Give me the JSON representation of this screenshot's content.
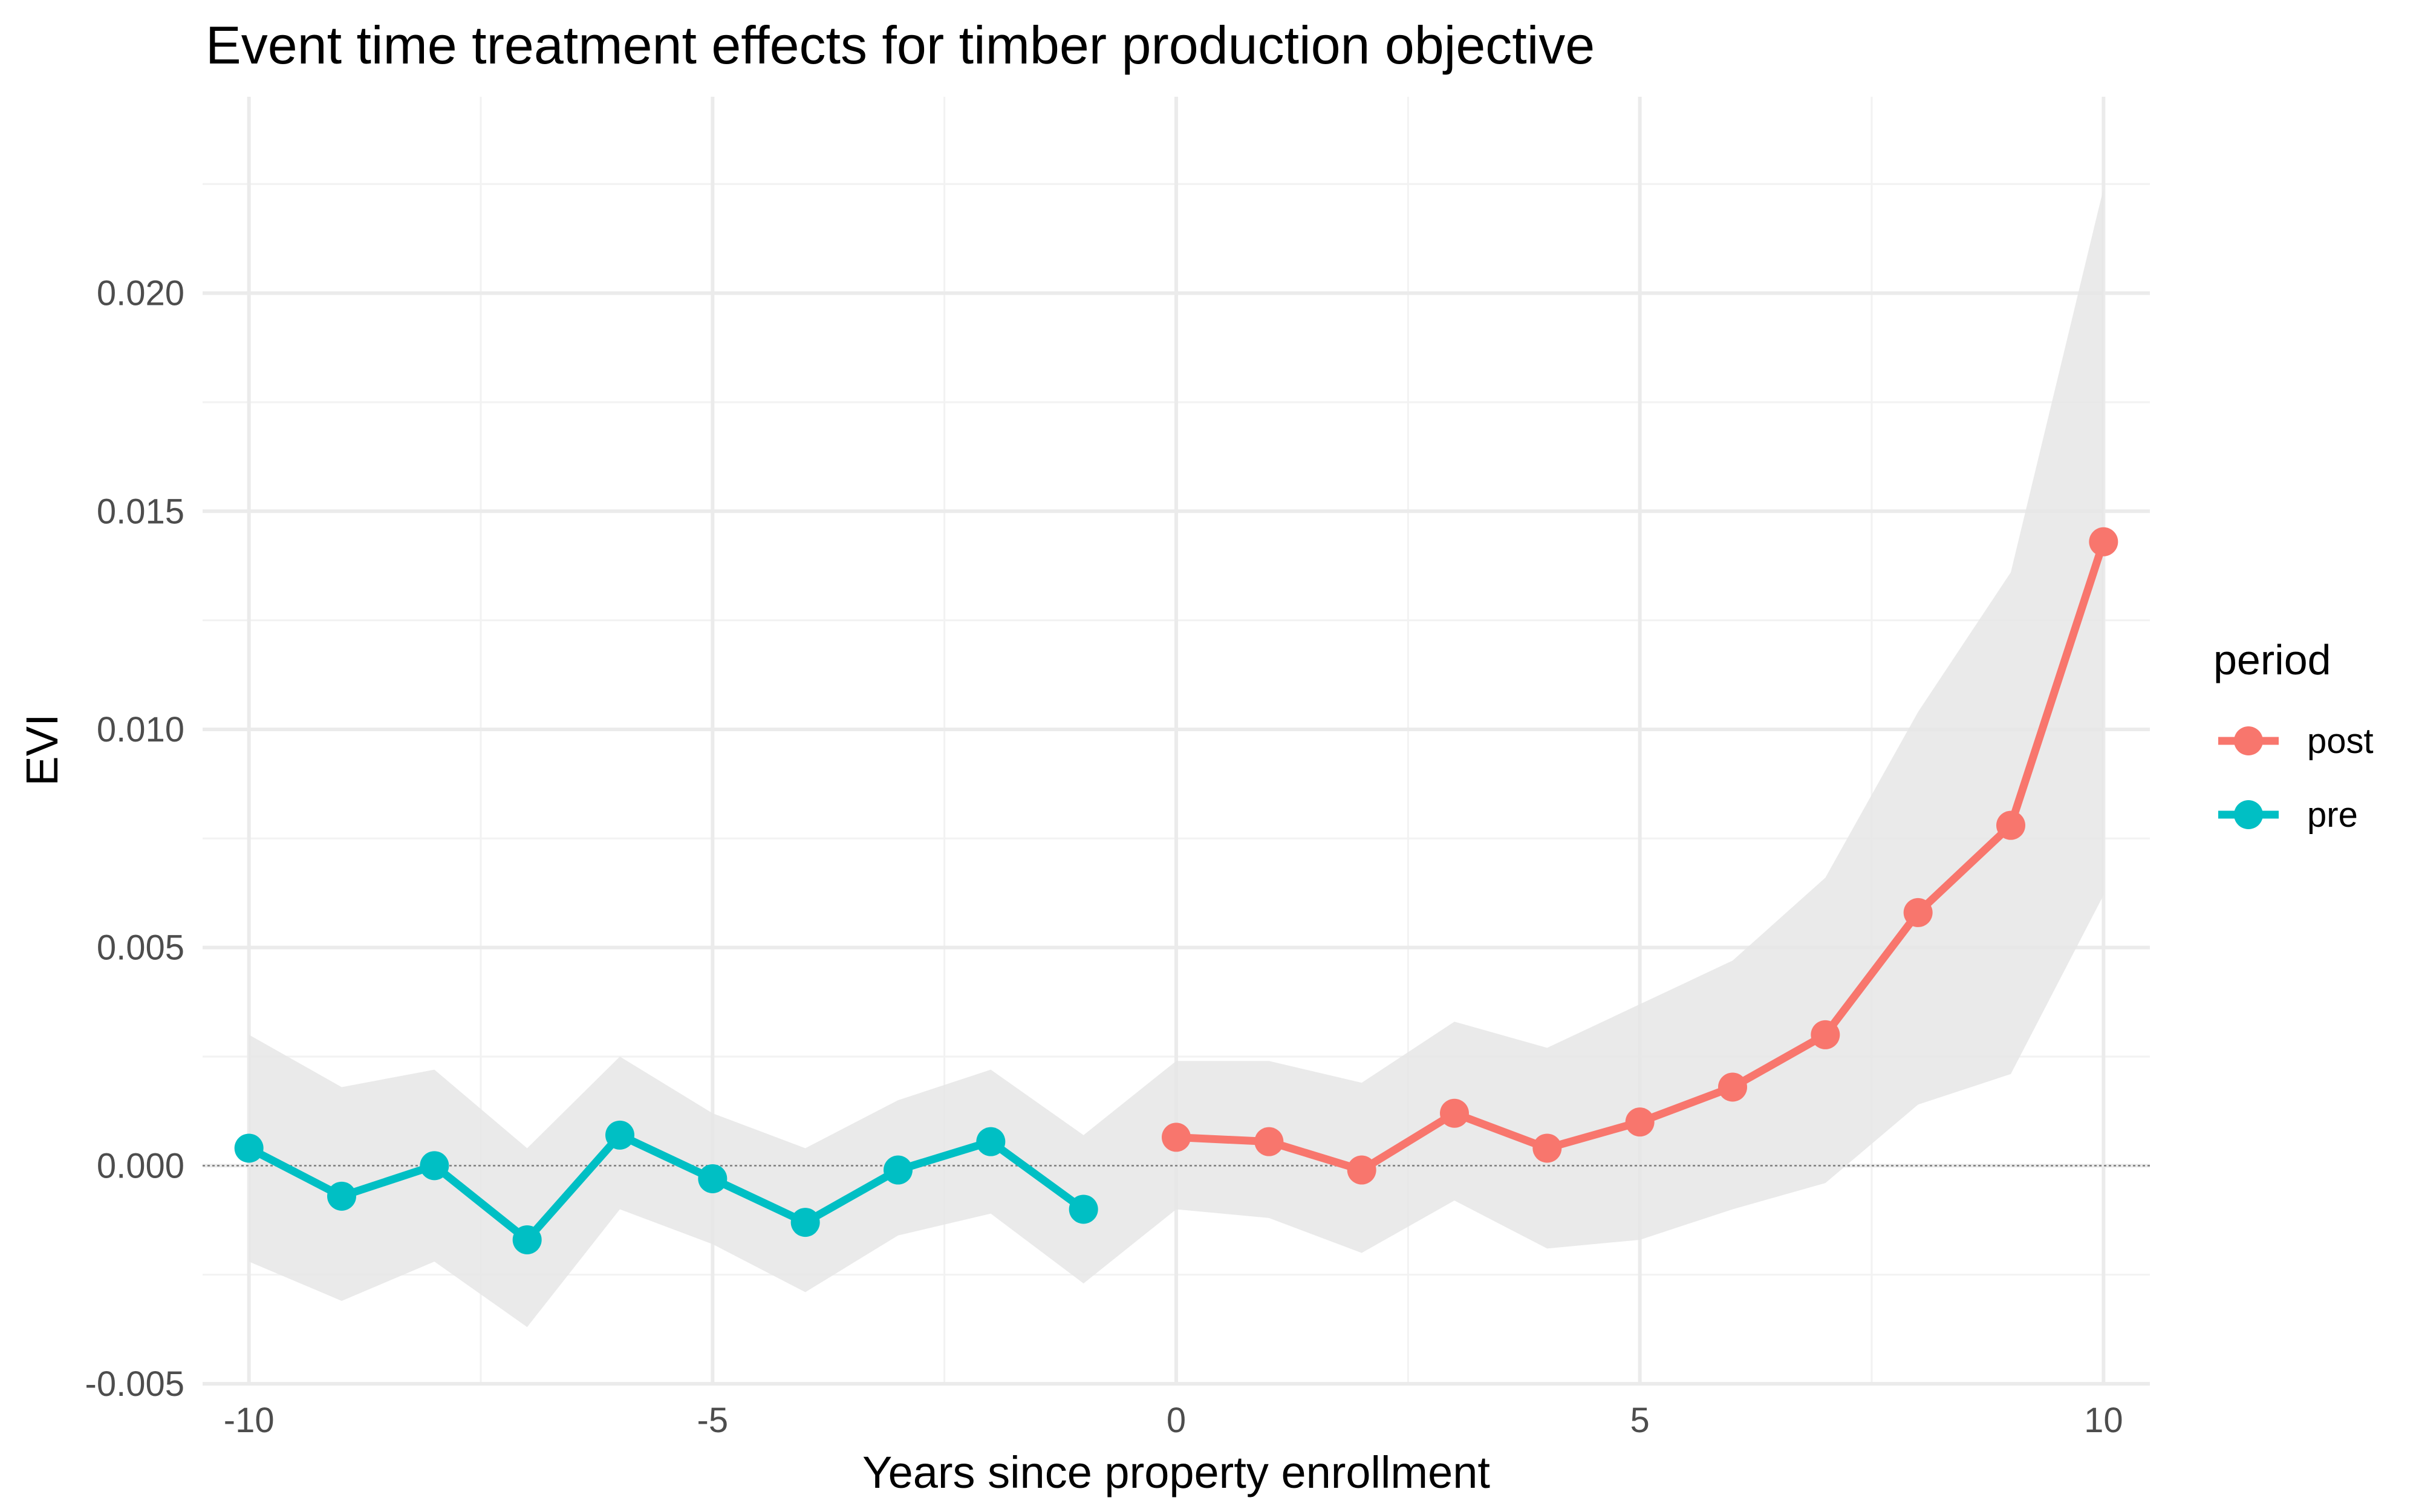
{
  "chart_data": {
    "type": "line",
    "title": "Event time treatment effects for timber production objective",
    "xlabel": "Years since property enrollment",
    "ylabel": "EVI",
    "xlim": [
      -10.5,
      10.5
    ],
    "ylim": [
      -0.005,
      0.0245
    ],
    "x_ticks": [
      -10,
      -5,
      0,
      5,
      10
    ],
    "x_tick_labels": [
      "-10",
      "-5",
      "0",
      "5",
      "10"
    ],
    "y_ticks": [
      -0.005,
      0.0,
      0.005,
      0.01,
      0.015,
      0.02
    ],
    "y_tick_labels": [
      "-0.005",
      "0.000",
      "0.005",
      "0.010",
      "0.015",
      "0.020"
    ],
    "grid": true,
    "reference_line": 0,
    "legend": {
      "title": "period",
      "position": "right"
    },
    "series": [
      {
        "name": "post",
        "color": "#F8766D",
        "x": [
          0,
          1,
          2,
          3,
          4,
          5,
          6,
          7,
          8,
          9,
          10
        ],
        "y": [
          0.00065,
          0.00055,
          -0.0001,
          0.0012,
          0.0004,
          0.001,
          0.0018,
          0.003,
          0.0058,
          0.0078,
          0.0143
        ]
      },
      {
        "name": "pre",
        "color": "#00BFC4",
        "x": [
          -10,
          -9,
          -8,
          -7,
          -6,
          -5,
          -4,
          -3,
          -2,
          -1
        ],
        "y": [
          0.0004,
          -0.0007,
          0.0,
          -0.0017,
          0.0007,
          -0.0003,
          -0.0013,
          -0.0001,
          0.00055,
          -0.001
        ]
      }
    ],
    "confidence_band": {
      "color": "#e6e6e6",
      "x": [
        -10,
        -9,
        -8,
        -7,
        -6,
        -5,
        -4,
        -3,
        -2,
        -1,
        0,
        1,
        2,
        3,
        4,
        5,
        6,
        7,
        8,
        9,
        10
      ],
      "lower": [
        -0.0022,
        -0.0031,
        -0.0022,
        -0.0037,
        -0.001,
        -0.0018,
        -0.0029,
        -0.0016,
        -0.0011,
        -0.0027,
        -0.001,
        -0.0012,
        -0.002,
        -0.0008,
        -0.0019,
        -0.0017,
        -0.001,
        -0.0004,
        0.0014,
        0.0021,
        0.0062
      ],
      "upper": [
        0.003,
        0.0018,
        0.0022,
        0.0004,
        0.0025,
        0.0012,
        0.0004,
        0.0015,
        0.0022,
        0.0007,
        0.0024,
        0.0024,
        0.0019,
        0.0033,
        0.0027,
        0.0037,
        0.0047,
        0.0066,
        0.0104,
        0.0136,
        0.0224
      ]
    }
  }
}
